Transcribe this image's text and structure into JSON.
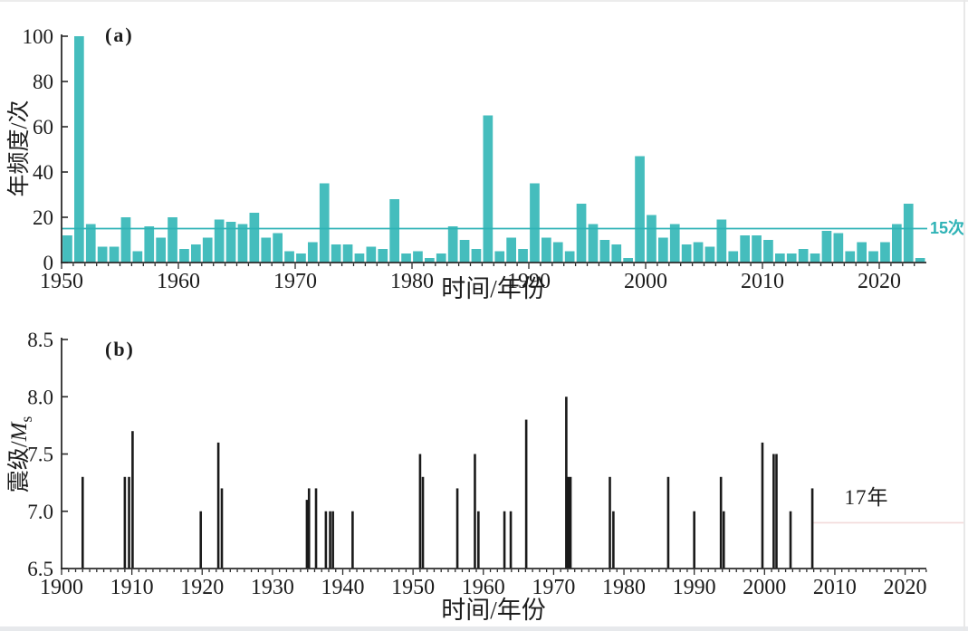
{
  "page": {
    "background": "#ffffff",
    "edge_top_color": "#ececec",
    "edge_bottom_color": "#e7e9ec",
    "edge_right_color": "#e8e8e8"
  },
  "chart_data": [
    {
      "type": "bar",
      "title": "(a)",
      "ylabel": "年频度/次",
      "xlabel": "时间/年份",
      "ylim": [
        0,
        100
      ],
      "xlim": [
        1950,
        2024
      ],
      "y_ticks": [
        0,
        20,
        40,
        60,
        80,
        100
      ],
      "x_ticks": [
        1950,
        1960,
        1970,
        1980,
        1990,
        2000,
        2010,
        2020
      ],
      "grid": false,
      "legend": "none",
      "bar_color": "#45bdbd",
      "axis_color": "#2b2b2b",
      "threshold": {
        "value": 15,
        "label": "15次",
        "color": "#2fb3b6"
      },
      "categories": [
        1950,
        1951,
        1952,
        1953,
        1954,
        1955,
        1956,
        1957,
        1958,
        1959,
        1960,
        1961,
        1962,
        1963,
        1964,
        1965,
        1966,
        1967,
        1968,
        1969,
        1970,
        1971,
        1972,
        1973,
        1974,
        1975,
        1976,
        1977,
        1978,
        1979,
        1980,
        1981,
        1982,
        1983,
        1984,
        1985,
        1986,
        1987,
        1988,
        1989,
        1990,
        1991,
        1992,
        1993,
        1994,
        1995,
        1996,
        1997,
        1998,
        1999,
        2000,
        2001,
        2002,
        2003,
        2004,
        2005,
        2006,
        2007,
        2008,
        2009,
        2010,
        2011,
        2012,
        2013,
        2014,
        2015,
        2016,
        2017,
        2018,
        2019,
        2020,
        2021,
        2022,
        2023
      ],
      "values": [
        12,
        100,
        17,
        7,
        7,
        20,
        5,
        16,
        11,
        20,
        6,
        8,
        11,
        19,
        18,
        17,
        22,
        11,
        13,
        5,
        4,
        9,
        35,
        8,
        8,
        4,
        7,
        6,
        28,
        4,
        5,
        2,
        4,
        16,
        10,
        6,
        65,
        5,
        11,
        6,
        35,
        11,
        9,
        5,
        26,
        17,
        10,
        8,
        2,
        47,
        21,
        11,
        17,
        8,
        9,
        7,
        19,
        5,
        12,
        12,
        10,
        4,
        4,
        6,
        4,
        14,
        13,
        5,
        9,
        5,
        9,
        17,
        26,
        2
      ]
    },
    {
      "type": "scatter",
      "marker": "stem",
      "title": "(b)",
      "ylabel": "震级/Ms",
      "ylabel_prefix": "震级/",
      "ylabel_var": "M",
      "ylabel_sub": "s",
      "xlabel": "时间/年份",
      "ylim": [
        6.5,
        8.5
      ],
      "xlim": [
        1900,
        2023.5
      ],
      "y_ticks": [
        6.5,
        7.0,
        7.5,
        8.0,
        8.5
      ],
      "x_ticks": [
        1900,
        1910,
        1920,
        1930,
        1940,
        1950,
        1960,
        1970,
        1980,
        1990,
        2000,
        2010,
        2020
      ],
      "grid": false,
      "legend": "none",
      "stem_color": "#1a1a1a",
      "axis_color": "#2b2b2b",
      "points": [
        {
          "x": 1903.0,
          "y": 7.3
        },
        {
          "x": 1909.0,
          "y": 7.3
        },
        {
          "x": 1909.6,
          "y": 7.3
        },
        {
          "x": 1910.1,
          "y": 7.7
        },
        {
          "x": 1919.8,
          "y": 7.0
        },
        {
          "x": 1922.3,
          "y": 7.6
        },
        {
          "x": 1922.8,
          "y": 7.2
        },
        {
          "x": 1934.9,
          "y": 7.1
        },
        {
          "x": 1935.2,
          "y": 7.2
        },
        {
          "x": 1936.2,
          "y": 7.2
        },
        {
          "x": 1937.6,
          "y": 7.0
        },
        {
          "x": 1938.2,
          "y": 7.0
        },
        {
          "x": 1938.6,
          "y": 7.0
        },
        {
          "x": 1941.4,
          "y": 7.0
        },
        {
          "x": 1951.0,
          "y": 7.5
        },
        {
          "x": 1951.4,
          "y": 7.3
        },
        {
          "x": 1956.3,
          "y": 7.2
        },
        {
          "x": 1958.8,
          "y": 7.5
        },
        {
          "x": 1959.3,
          "y": 7.0
        },
        {
          "x": 1963.0,
          "y": 7.0
        },
        {
          "x": 1963.9,
          "y": 7.0
        },
        {
          "x": 1966.1,
          "y": 7.8
        },
        {
          "x": 1971.8,
          "y": 8.0
        },
        {
          "x": 1972.1,
          "y": 7.3
        },
        {
          "x": 1972.4,
          "y": 7.3
        },
        {
          "x": 1978.0,
          "y": 7.3
        },
        {
          "x": 1978.5,
          "y": 7.0
        },
        {
          "x": 1986.3,
          "y": 7.3
        },
        {
          "x": 1990.0,
          "y": 7.0
        },
        {
          "x": 1993.8,
          "y": 7.3
        },
        {
          "x": 1994.2,
          "y": 7.0
        },
        {
          "x": 1999.7,
          "y": 7.6
        },
        {
          "x": 2001.3,
          "y": 7.5
        },
        {
          "x": 2001.7,
          "y": 7.5
        },
        {
          "x": 2003.7,
          "y": 7.0
        },
        {
          "x": 2006.8,
          "y": 7.2
        }
      ],
      "annotation": {
        "label": "17年",
        "line_value": 6.9,
        "line_start": 2006.8,
        "line_end": 2023.4,
        "extends_to_right_edge": true,
        "line_color": "#f2dada"
      }
    }
  ]
}
